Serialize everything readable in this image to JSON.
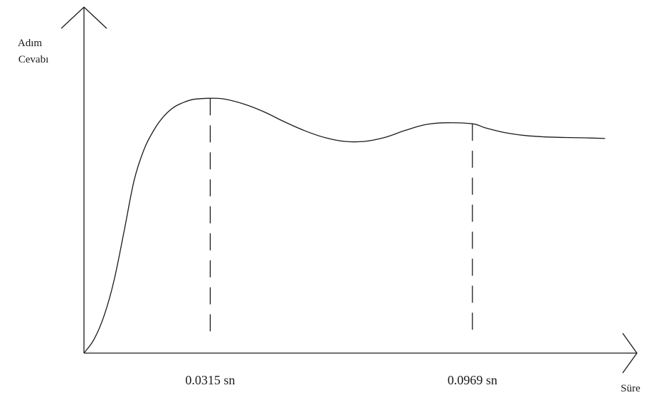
{
  "chart_data": {
    "type": "line",
    "title": "",
    "ylabel": [
      "Adım",
      "Cevabı"
    ],
    "xlabel": "Süre",
    "xlim": [
      0,
      0.1335
    ],
    "ylim": [
      0,
      1.37
    ],
    "grid": false,
    "series": [
      {
        "x": [
          0,
          0.0025,
          0.005,
          0.0075,
          0.01,
          0.0125,
          0.015,
          0.0175,
          0.02,
          0.0225,
          0.025,
          0.0275,
          0.0315,
          0.035,
          0.04,
          0.045,
          0.05,
          0.055,
          0.06,
          0.065,
          0.07,
          0.075,
          0.08,
          0.085,
          0.09,
          0.0969,
          0.1,
          0.105,
          0.11,
          0.115,
          0.12,
          0.125,
          0.13
        ],
        "y": [
          0,
          0.07,
          0.19,
          0.37,
          0.62,
          0.88,
          1.04,
          1.14,
          1.21,
          1.255,
          1.28,
          1.295,
          1.3,
          1.296,
          1.27,
          1.23,
          1.18,
          1.135,
          1.1,
          1.08,
          1.08,
          1.1,
          1.135,
          1.165,
          1.175,
          1.17,
          1.15,
          1.125,
          1.11,
          1.103,
          1.1,
          1.098,
          1.095
        ]
      }
    ],
    "markers": [
      {
        "x": 0.0315,
        "label": "0.0315 sn"
      },
      {
        "x": 0.0969,
        "label": "0.0969 sn"
      }
    ]
  }
}
